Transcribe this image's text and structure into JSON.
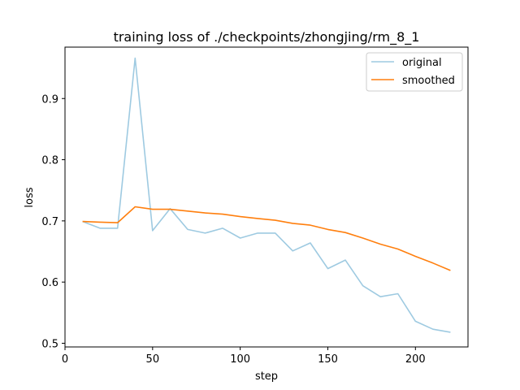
{
  "chart_data": {
    "type": "line",
    "title": "training loss of ./checkpoints/zhongjing/rm_8_1",
    "xlabel": "step",
    "ylabel": "loss",
    "xlim": [
      0,
      230
    ],
    "ylim": [
      0.494,
      0.984
    ],
    "xticks": [
      0,
      50,
      100,
      150,
      200
    ],
    "yticks": [
      0.5,
      0.6,
      0.7,
      0.8,
      0.9
    ],
    "ytick_labels": [
      "0.5",
      "0.6",
      "0.7",
      "0.8",
      "0.9"
    ],
    "grid": false,
    "legend_position": "top-right",
    "x": [
      10,
      20,
      30,
      40,
      50,
      60,
      70,
      80,
      90,
      100,
      110,
      120,
      130,
      140,
      150,
      160,
      170,
      180,
      190,
      200,
      210,
      220
    ],
    "series": [
      {
        "name": "original",
        "color": "#9ecae1",
        "values": [
          0.699,
          0.688,
          0.688,
          0.966,
          0.684,
          0.72,
          0.686,
          0.68,
          0.688,
          0.672,
          0.68,
          0.68,
          0.651,
          0.664,
          0.622,
          0.636,
          0.594,
          0.576,
          0.581,
          0.536,
          0.523,
          0.518
        ]
      },
      {
        "name": "smoothed",
        "color": "#ff7f0e",
        "values": [
          0.699,
          0.698,
          0.697,
          0.723,
          0.719,
          0.719,
          0.716,
          0.713,
          0.711,
          0.707,
          0.704,
          0.701,
          0.696,
          0.693,
          0.686,
          0.681,
          0.672,
          0.662,
          0.654,
          0.642,
          0.631,
          0.619
        ]
      }
    ]
  }
}
